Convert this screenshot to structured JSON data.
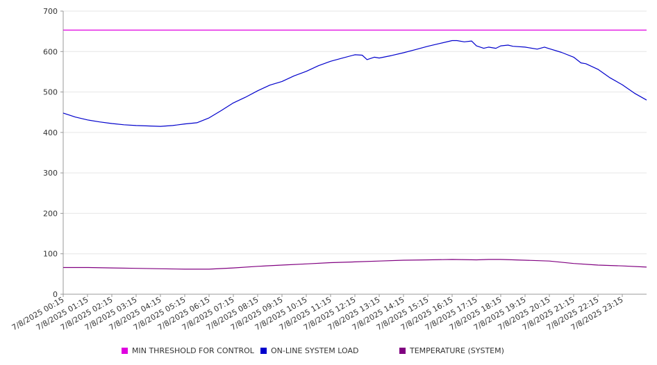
{
  "chart_data": {
    "type": "line",
    "title": "",
    "xlabel": "",
    "ylabel": "",
    "ylim": [
      0,
      700
    ],
    "yticks": [
      0,
      100,
      200,
      300,
      400,
      500,
      600,
      700
    ],
    "grid": "horizontal",
    "legend_position": "bottom",
    "categories": [
      "7/8/2025 00:15",
      "7/8/2025 01:15",
      "7/8/2025 02:15",
      "7/8/2025 03:15",
      "7/8/2025 04:15",
      "7/8/2025 05:15",
      "7/8/2025 06:15",
      "7/8/2025 07:15",
      "7/8/2025 08:15",
      "7/8/2025 09:15",
      "7/8/2025 10:15",
      "7/8/2025 11:15",
      "7/8/2025 12:15",
      "7/8/2025 13:15",
      "7/8/2025 14:15",
      "7/8/2025 15:15",
      "7/8/2025 16:15",
      "7/8/2025 17:15",
      "7/8/2025 18:15",
      "7/8/2025 19:15",
      "7/8/2025 20:15",
      "7/8/2025 21:15",
      "7/8/2025 22:15",
      "7/8/2025 23:15"
    ],
    "series": [
      {
        "name": "MIN THRESHOLD FOR CONTROL",
        "color": "#e000e0",
        "x": [
          0,
          24
        ],
        "values": [
          653,
          653
        ]
      },
      {
        "name": "ON-LINE SYSTEM LOAD",
        "color": "#0000cc",
        "x": [
          0,
          0.5,
          1,
          1.5,
          2,
          2.5,
          3,
          3.5,
          4,
          4.5,
          5,
          5.5,
          6,
          6.5,
          7,
          7.5,
          8,
          8.5,
          9,
          9.5,
          10,
          10.5,
          11,
          11.5,
          12,
          12.3,
          12.5,
          12.8,
          13,
          13.5,
          14,
          14.5,
          15,
          15.5,
          16,
          16.2,
          16.5,
          16.8,
          17,
          17.3,
          17.5,
          17.8,
          18,
          18.3,
          18.5,
          19,
          19.5,
          19.8,
          20,
          20.5,
          21,
          21.3,
          21.5,
          22,
          22.5,
          23,
          23.5,
          24
        ],
        "values": [
          448,
          438,
          431,
          426,
          422,
          419,
          417,
          416,
          415,
          417,
          421,
          424,
          436,
          454,
          473,
          487,
          503,
          517,
          526,
          540,
          551,
          565,
          576,
          584,
          592,
          591,
          580,
          586,
          584,
          590,
          597,
          605,
          613,
          620,
          627,
          627,
          624,
          626,
          614,
          608,
          611,
          608,
          614,
          616,
          613,
          611,
          606,
          611,
          607,
          598,
          586,
          572,
          570,
          556,
          535,
          518,
          497,
          480
        ]
      },
      {
        "name": "TEMPERATURE (SYSTEM)",
        "color": "#800080",
        "x": [
          0,
          1,
          2,
          3,
          4,
          5,
          6,
          7,
          8,
          9,
          10,
          11,
          12,
          13,
          14,
          15,
          16,
          17,
          17.5,
          18,
          19,
          20,
          21,
          22,
          23,
          24
        ],
        "values": [
          66,
          66,
          65,
          64,
          63,
          62,
          62,
          65,
          69,
          72,
          75,
          78,
          80,
          82,
          84,
          85,
          86,
          85,
          86,
          86,
          84,
          82,
          76,
          72,
          70,
          67
        ]
      }
    ]
  }
}
